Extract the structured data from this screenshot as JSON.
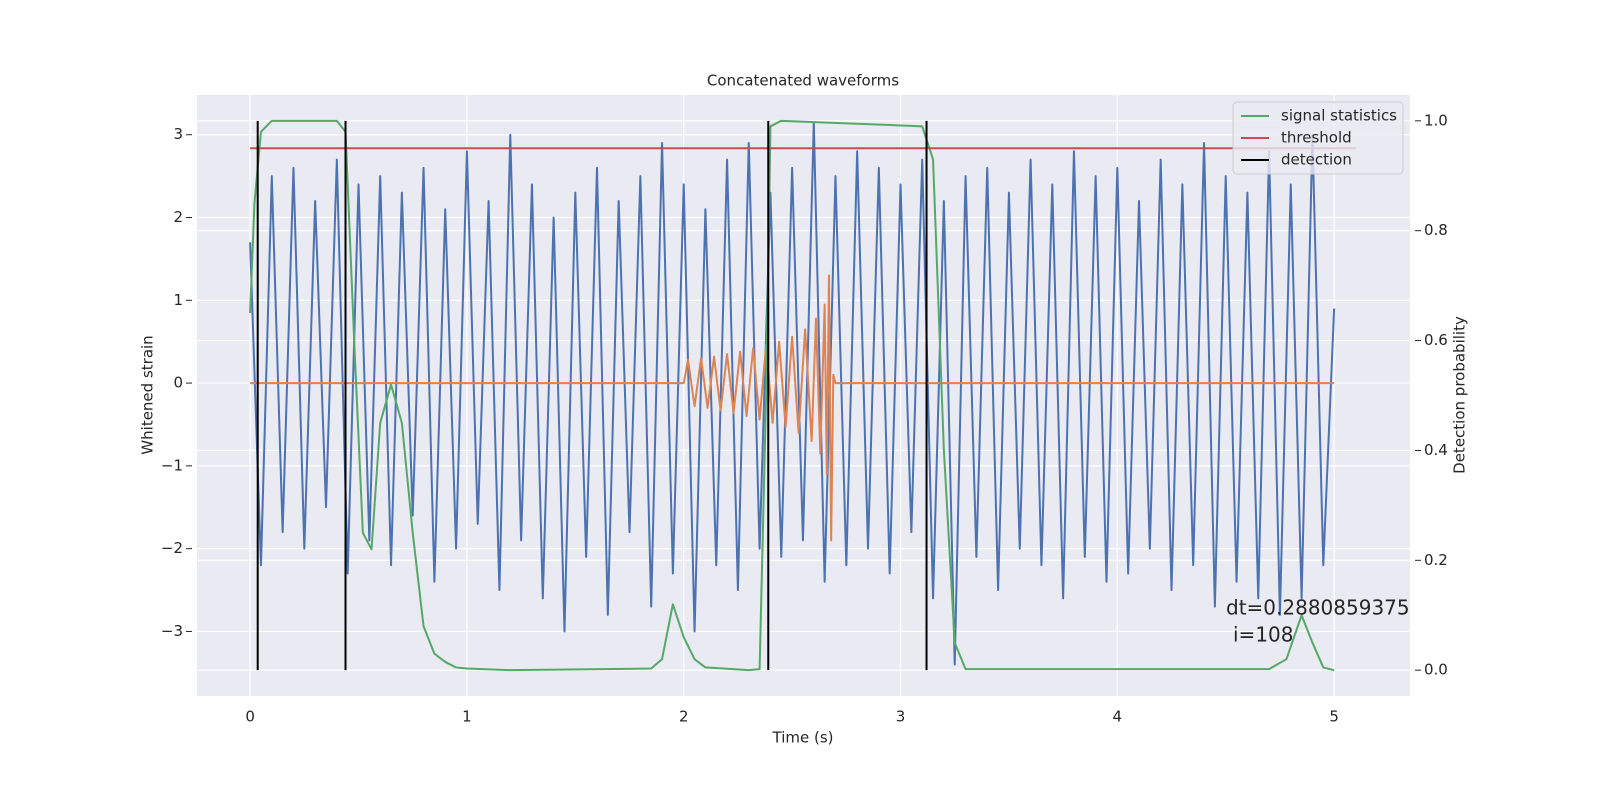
{
  "chart_data": {
    "type": "line",
    "title": "Concatenated waveforms",
    "xlabel": "Time (s)",
    "ylabel": "Whitened strain",
    "y2label": "Detection probability",
    "xlim": [
      -0.245,
      5.35
    ],
    "xticks": [
      0,
      1,
      2,
      3,
      4,
      5
    ],
    "ylim": [
      -3.78,
      3.48
    ],
    "yticks": [
      {
        "value": -3,
        "label": "−3"
      },
      {
        "value": -2,
        "label": "−2"
      },
      {
        "value": -1,
        "label": "−1"
      },
      0,
      1,
      2,
      3
    ],
    "y2lim": [
      -0.047,
      1.047
    ],
    "y2ticks": [
      {
        "value": 0,
        "label": "0.0"
      },
      0.2,
      0.4,
      0.6,
      0.8,
      {
        "value": 1,
        "label": "1.0"
      }
    ],
    "grid": true,
    "legend": "upper right",
    "annotation": [
      "dt=0.2880859375",
      "i=108"
    ],
    "series": [
      {
        "color": "#4c72b0",
        "axis": "y",
        "x": [
          0,
          0.05,
          0.1,
          0.15,
          0.2,
          0.25,
          0.3,
          0.35,
          0.4,
          0.45,
          0.5,
          0.55,
          0.6,
          0.65,
          0.7,
          0.75,
          0.8,
          0.85,
          0.9,
          0.95,
          1,
          1.05,
          1.1,
          1.15,
          1.2,
          1.25,
          1.3,
          1.35,
          1.4,
          1.45,
          1.5,
          1.55,
          1.6,
          1.65,
          1.7,
          1.75,
          1.8,
          1.85,
          1.9,
          1.95,
          2,
          2.05,
          2.1,
          2.15,
          2.2,
          2.25,
          2.3,
          2.35,
          2.4,
          2.45,
          2.5,
          2.55,
          2.6,
          2.65,
          2.7,
          2.75,
          2.8,
          2.85,
          2.9,
          2.95,
          3,
          3.05,
          3.1,
          3.15,
          3.2,
          3.25,
          3.3,
          3.35,
          3.4,
          3.45,
          3.5,
          3.55,
          3.6,
          3.65,
          3.7,
          3.75,
          3.8,
          3.85,
          3.9,
          3.95,
          4,
          4.05,
          4.1,
          4.15,
          4.2,
          4.25,
          4.3,
          4.35,
          4.4,
          4.45,
          4.5,
          4.55,
          4.6,
          4.65,
          4.7,
          4.75,
          4.8,
          4.85,
          4.9,
          4.95,
          5
        ],
        "values": [
          1.7,
          -2.2,
          2.5,
          -1.8,
          2.6,
          -2.0,
          2.2,
          -1.5,
          2.7,
          -2.3,
          2.4,
          -1.9,
          2.5,
          -2.2,
          2.3,
          -1.6,
          2.6,
          -2.4,
          2.1,
          -2.0,
          2.8,
          -1.7,
          2.2,
          -2.5,
          3.0,
          -1.9,
          2.4,
          -2.6,
          2.0,
          -3.0,
          2.3,
          -2.1,
          2.6,
          -2.8,
          2.2,
          -1.8,
          2.5,
          -2.7,
          2.9,
          -2.3,
          2.4,
          -3.0,
          2.1,
          -2.2,
          2.7,
          -2.5,
          2.9,
          -2.0,
          2.3,
          -2.1,
          2.6,
          -1.9,
          3.15,
          -2.4,
          2.5,
          -2.2,
          2.8,
          -2.0,
          2.6,
          -2.3,
          2.4,
          -1.8,
          2.7,
          -2.6,
          2.2,
          -3.4,
          2.5,
          -2.1,
          2.6,
          -2.5,
          2.3,
          -2.0,
          2.7,
          -2.2,
          2.4,
          -2.6,
          2.8,
          -2.1,
          2.5,
          -2.4,
          2.6,
          -2.3,
          2.2,
          -2.0,
          2.7,
          -2.5,
          2.4,
          -2.2,
          2.9,
          -2.7,
          2.5,
          -2.4,
          2.3,
          -2.6,
          2.8,
          -2.8,
          2.4,
          -2.6,
          3.0,
          -2.2,
          0.9
        ]
      },
      {
        "color": "#dd8452",
        "axis": "y",
        "x": [
          0,
          2.0,
          2.02,
          2.05,
          2.08,
          2.11,
          2.14,
          2.17,
          2.2,
          2.23,
          2.26,
          2.29,
          2.32,
          2.35,
          2.38,
          2.41,
          2.44,
          2.47,
          2.5,
          2.53,
          2.56,
          2.59,
          2.61,
          2.63,
          2.65,
          2.66,
          2.67,
          2.68,
          2.69,
          2.7,
          5
        ],
        "values": [
          0,
          0,
          0.28,
          -0.28,
          0.3,
          -0.3,
          0.32,
          -0.33,
          0.35,
          -0.36,
          0.38,
          -0.4,
          0.42,
          -0.44,
          0.46,
          -0.48,
          0.5,
          -0.53,
          0.56,
          -0.6,
          0.65,
          -0.7,
          0.78,
          -0.85,
          0.95,
          -1.1,
          1.3,
          -1.9,
          0.1,
          0,
          0
        ]
      },
      {
        "name": "signal statistics",
        "color": "#55a868",
        "axis": "y2",
        "x": [
          0,
          0.02,
          0.05,
          0.1,
          0.4,
          0.44,
          0.48,
          0.52,
          0.56,
          0.6,
          0.65,
          0.7,
          0.75,
          0.8,
          0.85,
          0.9,
          0.95,
          1.0,
          1.2,
          1.85,
          1.9,
          1.95,
          2.0,
          2.05,
          2.1,
          2.3,
          2.35,
          2.38,
          2.4,
          2.45,
          3.1,
          3.15,
          3.2,
          3.25,
          3.3,
          4.7,
          4.78,
          4.85,
          4.9,
          4.95,
          5.0
        ],
        "values": [
          0.65,
          0.85,
          0.98,
          1.0,
          1.0,
          0.98,
          0.6,
          0.25,
          0.22,
          0.45,
          0.52,
          0.45,
          0.25,
          0.08,
          0.03,
          0.015,
          0.005,
          0.003,
          0.0,
          0.003,
          0.02,
          0.12,
          0.06,
          0.02,
          0.005,
          0.0,
          0.002,
          0.5,
          0.99,
          1.0,
          0.99,
          0.93,
          0.4,
          0.05,
          0.002,
          0.002,
          0.02,
          0.1,
          0.05,
          0.005,
          0.0
        ]
      },
      {
        "name": "threshold",
        "color": "#c44e52",
        "axis": "y2",
        "x": [
          0,
          5.1
        ],
        "values": [
          0.95,
          0.95
        ]
      },
      {
        "name": "detection",
        "color": "#000000",
        "axis": "y2",
        "kind": "vline",
        "x": [
          0.035,
          0.44,
          2.39,
          3.12
        ],
        "span": [
          0,
          1
        ]
      }
    ]
  }
}
